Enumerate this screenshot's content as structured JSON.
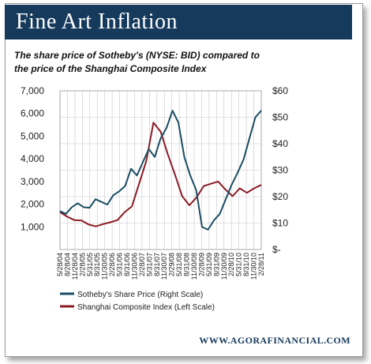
{
  "header": {
    "title": "Fine Art Inflation"
  },
  "subtitle_lines": [
    "The share price of Sotheby's (NYSE: BID) compared to",
    "the price of the Shanghai Composite Index"
  ],
  "footer": {
    "site": "WWW.AGORAFINANCIAL.COM"
  },
  "colors": {
    "banner": "#163a5c",
    "sothebys": "#1a4d63",
    "shanghai": "#8b1a24",
    "grid": "#c8c8c8"
  },
  "chart_data": {
    "type": "line",
    "x_ticks": [
      "5/28/04",
      "8/28/04",
      "11/28/04",
      "2/28/05",
      "5/31/05",
      "8/31/05",
      "11/30/05",
      "2/28/06",
      "5/31/06",
      "8/31/06",
      "11/30/06",
      "2/28/07",
      "5/31/07",
      "8/31/07",
      "11/30/07",
      "2/29/08",
      "5/31/08",
      "8/31/08",
      "11/30/08",
      "2/28/09",
      "5/31/09",
      "8/31/09",
      "11/30/09",
      "2/28/10",
      "5/31/10",
      "8/31/10",
      "11/30/10",
      "2/28/11"
    ],
    "left_axis": {
      "ticks": [
        "1,000",
        "2,000",
        "3,000",
        "4,000",
        "5,000",
        "6,000",
        "7,000"
      ],
      "ylim": [
        0,
        7000
      ]
    },
    "right_axis": {
      "ticks": [
        "$-",
        "$10",
        "$20",
        "$30",
        "$40",
        "$50",
        "$60"
      ],
      "ylim": [
        0,
        60
      ]
    },
    "series": [
      {
        "name": "Sotheby's Share Price (Right Scale)",
        "axis": "right",
        "values": [
          14.5,
          13.5,
          16.0,
          17.5,
          16.0,
          15.8,
          19.0,
          18.0,
          17.0,
          20.5,
          22.0,
          24.0,
          30.5,
          28.0,
          33.0,
          38.0,
          35.0,
          42.0,
          46.0,
          52.5,
          48.0,
          35.0,
          28.0,
          22.5,
          8.5,
          7.5,
          11.0,
          13.5,
          19.0,
          24.5,
          29.0,
          34.0,
          42.0,
          50.0,
          52.5
        ]
      },
      {
        "name": "Shanghai Composite Index (Left Scale)",
        "axis": "left",
        "values": [
          1650,
          1450,
          1300,
          1280,
          1100,
          1020,
          1120,
          1200,
          1300,
          1650,
          1900,
          2900,
          3900,
          5600,
          5200,
          4200,
          3300,
          2350,
          1950,
          2300,
          2800,
          2900,
          3000,
          2650,
          2350,
          2700,
          2500,
          2700,
          2850
        ]
      }
    ]
  }
}
